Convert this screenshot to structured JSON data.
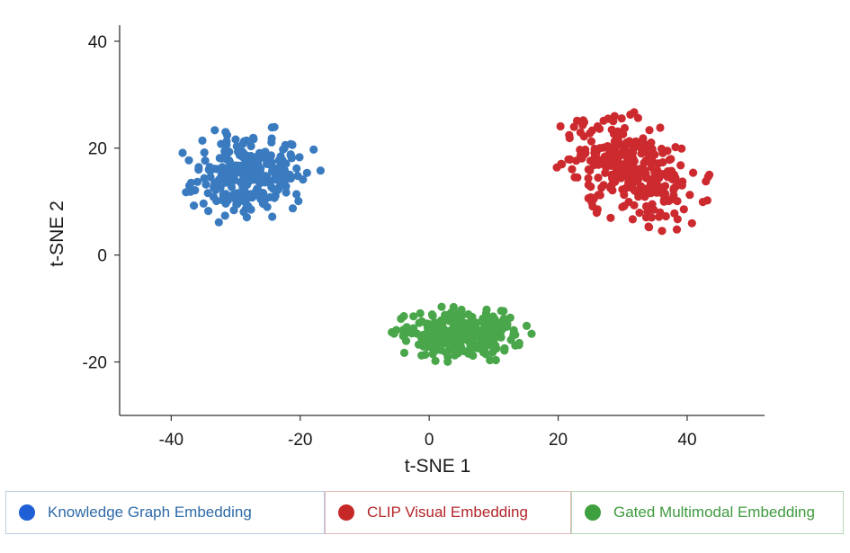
{
  "chart_data": {
    "type": "scatter",
    "title": "",
    "xlabel": "t-SNE 1",
    "ylabel": "t-SNE 2",
    "xlim": [
      -48,
      52
    ],
    "ylim": [
      -30,
      43
    ],
    "xticks": [
      "-40",
      "-20",
      "0",
      "20",
      "40"
    ],
    "yticks": [
      "40",
      "20",
      "0",
      "-20"
    ],
    "grid": false,
    "legend_position": "bottom",
    "series": [
      {
        "name": "Knowledge Graph Embedding",
        "color": "#3a7bc0",
        "legend_dot_color": "#1f5fd6",
        "text_color": "#2d6aa8",
        "border_color": "#b9cce0",
        "center": [
          -28,
          15
        ],
        "spread": [
          7.2,
          6.2
        ],
        "count": 260
      },
      {
        "name": "CLIP Visual Embedding",
        "color": "#cc2a2e",
        "legend_dot_color": "#c62828",
        "text_color": "#b32428",
        "border_color": "#e3b7b9",
        "center": [
          31,
          16
        ],
        "spread": [
          8.2,
          7.0
        ],
        "count": 300
      },
      {
        "name": "Gated Multimodal Embedding",
        "color": "#4aa64a",
        "legend_dot_color": "#3fa03f",
        "text_color": "#3e9a3e",
        "border_color": "#b5d8b5",
        "center": [
          5,
          -15
        ],
        "spread": [
          7.5,
          3.6
        ],
        "count": 300
      }
    ]
  }
}
